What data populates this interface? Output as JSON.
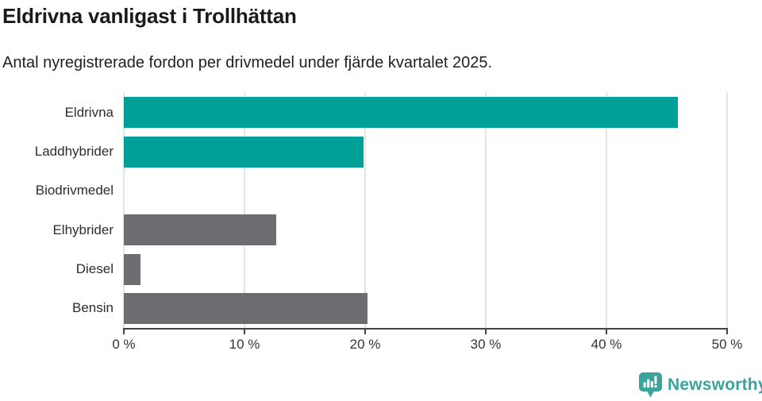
{
  "header": {
    "title": "Eldrivna vanligast i Trollhättan",
    "subtitle": "Antal nyregistrerade fordon per drivmedel under fjärde kvartalet 2025."
  },
  "chart_data": {
    "type": "bar",
    "orientation": "horizontal",
    "title": "Eldrivna vanligast i Trollhättan",
    "subtitle": "Antal nyregistrerade fordon per drivmedel under fjärde kvartalet 2025.",
    "categories": [
      "Eldrivna",
      "Laddhybrider",
      "Biodrivmedel",
      "Elhybrider",
      "Diesel",
      "Bensin"
    ],
    "values": [
      45.9,
      19.9,
      0,
      12.6,
      1.4,
      20.2
    ],
    "unit": "%",
    "xlabel": "",
    "ylabel": "",
    "xlim": [
      0,
      50
    ],
    "x_ticks": [
      0,
      10,
      20,
      30,
      40,
      50
    ],
    "x_tick_labels": [
      "0 %",
      "10 %",
      "20 %",
      "30 %",
      "40 %",
      "50 %"
    ],
    "bar_colors": [
      "#00a099",
      "#00a099",
      "#6d6d71",
      "#6d6d71",
      "#6d6d71",
      "#6d6d71"
    ],
    "highlight_color": "#00a099",
    "default_color": "#6d6d71",
    "grid": true,
    "legend_position": "none"
  },
  "footer": {
    "brand": "Newsworthy",
    "brand_color": "#3aa39b"
  }
}
